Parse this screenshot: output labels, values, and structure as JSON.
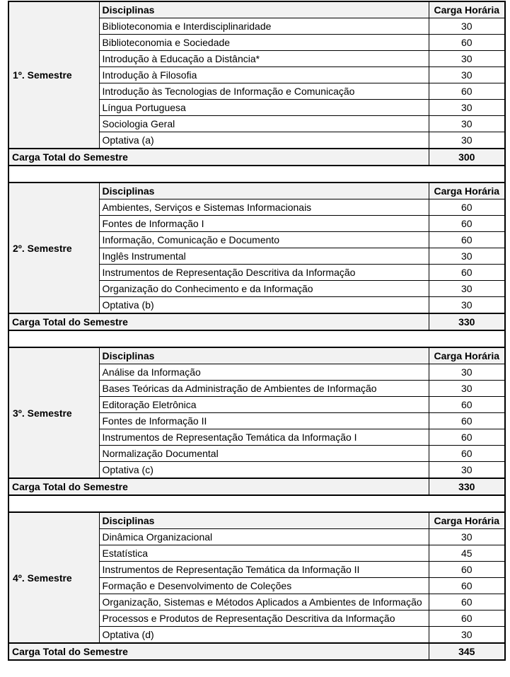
{
  "header_disc": "Disciplinas",
  "header_carga": "Carga Horária",
  "total_label": "Carga Total do Semestre",
  "semesters": [
    {
      "label": "1º. Semestre",
      "total": "300",
      "rows": [
        [
          "Biblioteconomia e Interdisciplinaridade",
          "30"
        ],
        [
          "Biblioteconomia e Sociedade",
          "60"
        ],
        [
          "Introdução à Educação a Distância*",
          "30"
        ],
        [
          "Introdução à Filosofia",
          "30"
        ],
        [
          "Introdução às Tecnologias de Informação e Comunicação",
          "60"
        ],
        [
          "Língua Portuguesa",
          "30"
        ],
        [
          "Sociologia Geral",
          "30"
        ],
        [
          "Optativa (a)",
          "30"
        ]
      ]
    },
    {
      "label": "2º. Semestre",
      "total": "330",
      "rows": [
        [
          "Ambientes, Serviços e Sistemas Informacionais",
          "60"
        ],
        [
          "Fontes de Informação I",
          "60"
        ],
        [
          "Informação, Comunicação e Documento",
          "60"
        ],
        [
          "Inglês Instrumental",
          "30"
        ],
        [
          "Instrumentos de Representação Descritiva da Informação",
          "60"
        ],
        [
          "Organização do Conhecimento e da Informação",
          "30"
        ],
        [
          "Optativa (b)",
          "30"
        ]
      ]
    },
    {
      "label": "3º. Semestre",
      "total": "330",
      "rows": [
        [
          "Análise da Informação",
          "30"
        ],
        [
          "Bases Teóricas da Administração de Ambientes de Informação",
          "30"
        ],
        [
          "Editoração Eletrônica",
          "60"
        ],
        [
          "Fontes de Informação II",
          "60"
        ],
        [
          "Instrumentos de Representação Temática da Informação I",
          "60"
        ],
        [
          "Normalização Documental",
          "60"
        ],
        [
          "Optativa (c)",
          "30"
        ]
      ]
    },
    {
      "label": "4º. Semestre",
      "total": "345",
      "rows": [
        [
          "Dinâmica Organizacional",
          "30"
        ],
        [
          "Estatística",
          "45"
        ],
        [
          "Instrumentos de Representação Temática da Informação II",
          "60"
        ],
        [
          "Formação e Desenvolvimento de Coleções",
          "60"
        ],
        [
          "Organização, Sistemas e Métodos Aplicados a Ambientes de Informação",
          "60"
        ],
        [
          "Processos e Produtos de Representação Descritiva da Informação",
          "60"
        ],
        [
          "Optativa (d)",
          "30"
        ]
      ]
    }
  ]
}
